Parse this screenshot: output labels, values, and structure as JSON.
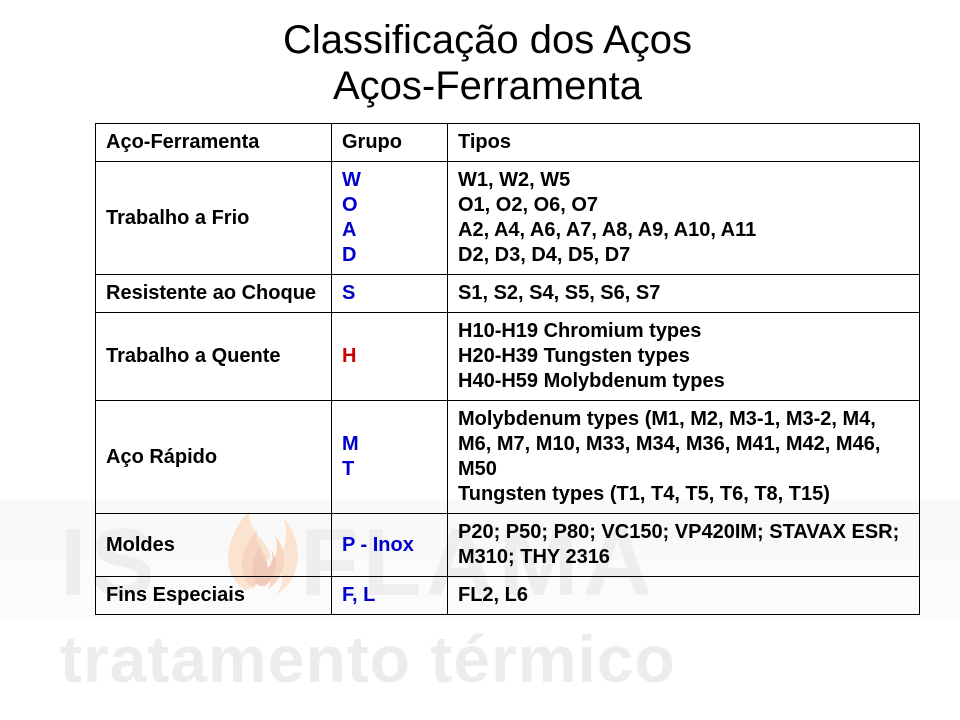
{
  "title": "Classificação dos Aços",
  "subtitle": "Aços-Ferramenta",
  "headers": {
    "name": "Aço-Ferramenta",
    "group": "Grupo",
    "types": "Tipos"
  },
  "rows": [
    {
      "name": "Trabalho a Frio",
      "group_lines": [
        "W",
        "O",
        "A",
        "D"
      ],
      "group_color": "#0000cc",
      "types_lines": [
        "W1, W2, W5",
        "O1, O2, O6, O7",
        "A2, A4, A6, A7, A8, A9, A10, A11",
        "D2, D3, D4, D5, D7"
      ]
    },
    {
      "name": "Resistente ao Choque",
      "group_lines": [
        "S"
      ],
      "group_color": "#0000cc",
      "types_lines": [
        "S1, S2, S4, S5, S6, S7"
      ]
    },
    {
      "name": "Trabalho a Quente",
      "group_lines": [
        "H"
      ],
      "group_color": "#cc0000",
      "types_lines": [
        "H10-H19 Chromium types",
        "H20-H39 Tungsten types",
        "H40-H59 Molybdenum types"
      ]
    },
    {
      "name": "Aço Rápido",
      "group_lines": [
        "M",
        "T"
      ],
      "group_color": "#0000cc",
      "types_lines": [
        "Molybdenum types (M1, M2, M3-1, M3-2, M4, M6, M7, M10, M33, M34, M36, M41, M42, M46, M50",
        "Tungsten types (T1, T4, T5, T6, T8, T15)"
      ]
    },
    {
      "name": "Moldes",
      "group_lines": [
        "P - Inox"
      ],
      "group_color": "#0000cc",
      "types_lines": [
        "P20; P50; P80; VC150; VP420IM; STAVAX ESR; M310; THY 2316"
      ]
    },
    {
      "name": "Fins Especiais",
      "group_lines": [
        "F, L"
      ],
      "group_color": "#0000cc",
      "types_lines": [
        "FL2, L6"
      ]
    }
  ],
  "watermark": {
    "brand_top_color": "#d9d9d9",
    "brand_mid_color": "#f2f2f2",
    "text_color": "#bfbfbf",
    "brand_text": "ISOFLAMA",
    "tagline": "tratamento térmico",
    "flame_colors": [
      "#f6b26b",
      "#e69138",
      "#cc4125"
    ]
  }
}
